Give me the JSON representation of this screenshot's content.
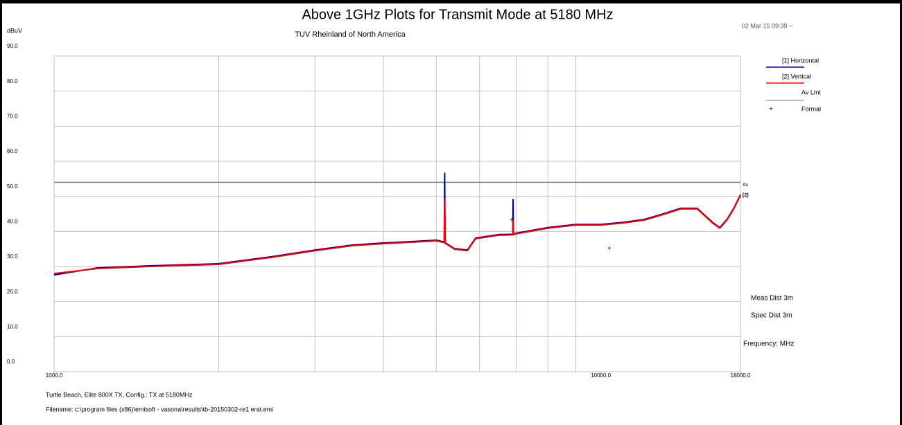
{
  "chart_data": {
    "type": "line",
    "title": "Above 1GHz Plots for Transmit Mode at 5180 MHz",
    "subtitle": "TUV Rheinland of North America",
    "timestamp": "02 Mar 15 09:39 --",
    "y_label": "dBuV",
    "x_label": "Frequency: MHz",
    "x_scale": "log",
    "grid": true,
    "legend": "right",
    "xlim": [
      1000,
      18000
    ],
    "xticks": [
      {
        "value": 1000,
        "label": "1000.0"
      },
      {
        "value": 10000,
        "label": "10000.0"
      },
      {
        "value": 18000,
        "label": "18000.0"
      }
    ],
    "xminor": [
      2000,
      3000,
      4000,
      5000,
      6000,
      7000,
      8000,
      9000
    ],
    "ylim": [
      0,
      90
    ],
    "yticks": [
      {
        "value": 0,
        "label": "0.0"
      },
      {
        "value": 10,
        "label": "10.0"
      },
      {
        "value": 20,
        "label": "20.0"
      },
      {
        "value": 30,
        "label": "30.0"
      },
      {
        "value": 40,
        "label": "40.0"
      },
      {
        "value": 50,
        "label": "50.0"
      },
      {
        "value": 60,
        "label": "60.0"
      },
      {
        "value": 70,
        "label": "70.0"
      },
      {
        "value": 80,
        "label": "80.0"
      },
      {
        "value": 90,
        "label": "90.0"
      }
    ],
    "x": [
      1000,
      1200,
      1500,
      2000,
      2500,
      3000,
      3500,
      4000,
      4500,
      5000,
      5170,
      5180,
      5190,
      5400,
      5700,
      5900,
      6500,
      6900,
      6910,
      6920,
      7000,
      8000,
      9000,
      10000,
      11000,
      12000,
      13000,
      14000,
      15000,
      16000,
      16500,
      17000,
      17500,
      18000
    ],
    "series": [
      {
        "name": "[1] Horizontal",
        "color": "#00008b",
        "values": [
          27.6,
          29.6,
          30.2,
          30.8,
          32.8,
          34.7,
          36.1,
          36.7,
          37.1,
          37.5,
          37.0,
          56.6,
          36.8,
          35.1,
          34.7,
          38.1,
          39.1,
          39.2,
          49.1,
          39.2,
          39.5,
          41.1,
          42.0,
          42.0,
          42.6,
          43.4,
          45.0,
          46.6,
          46.6,
          42.6,
          41.1,
          43.4,
          46.6,
          50.5
        ]
      },
      {
        "name": "[2] Vertical",
        "color": "#ff0000",
        "values": [
          28.0,
          29.4,
          30.0,
          30.6,
          32.6,
          34.5,
          35.9,
          36.5,
          36.9,
          37.3,
          36.8,
          49.1,
          36.6,
          34.9,
          34.5,
          37.9,
          38.9,
          39.0,
          43.2,
          39.0,
          39.3,
          40.9,
          41.8,
          41.8,
          42.4,
          43.2,
          44.8,
          46.4,
          46.4,
          42.4,
          40.9,
          43.2,
          46.4,
          50.3
        ]
      }
    ],
    "limit": {
      "name": "Av Lmt",
      "value": 54,
      "color": "#808080",
      "tag": "Av",
      "end_tag": "[2]"
    },
    "formal": {
      "name": "Formal",
      "marker": "+",
      "x": [
        6870,
        10360
      ],
      "values": [
        43.2,
        35.1
      ]
    },
    "notes": [
      "Meas Dist 3m",
      "Spec Dist 3m"
    ],
    "footer": [
      "Turtle Beach, Elite 800X TX, Config.: TX at 5180MHz",
      "Filename: c:\\program files (x86)\\emisoft - vasona\\results\\tb-20150302-re1 erat.emi"
    ]
  }
}
